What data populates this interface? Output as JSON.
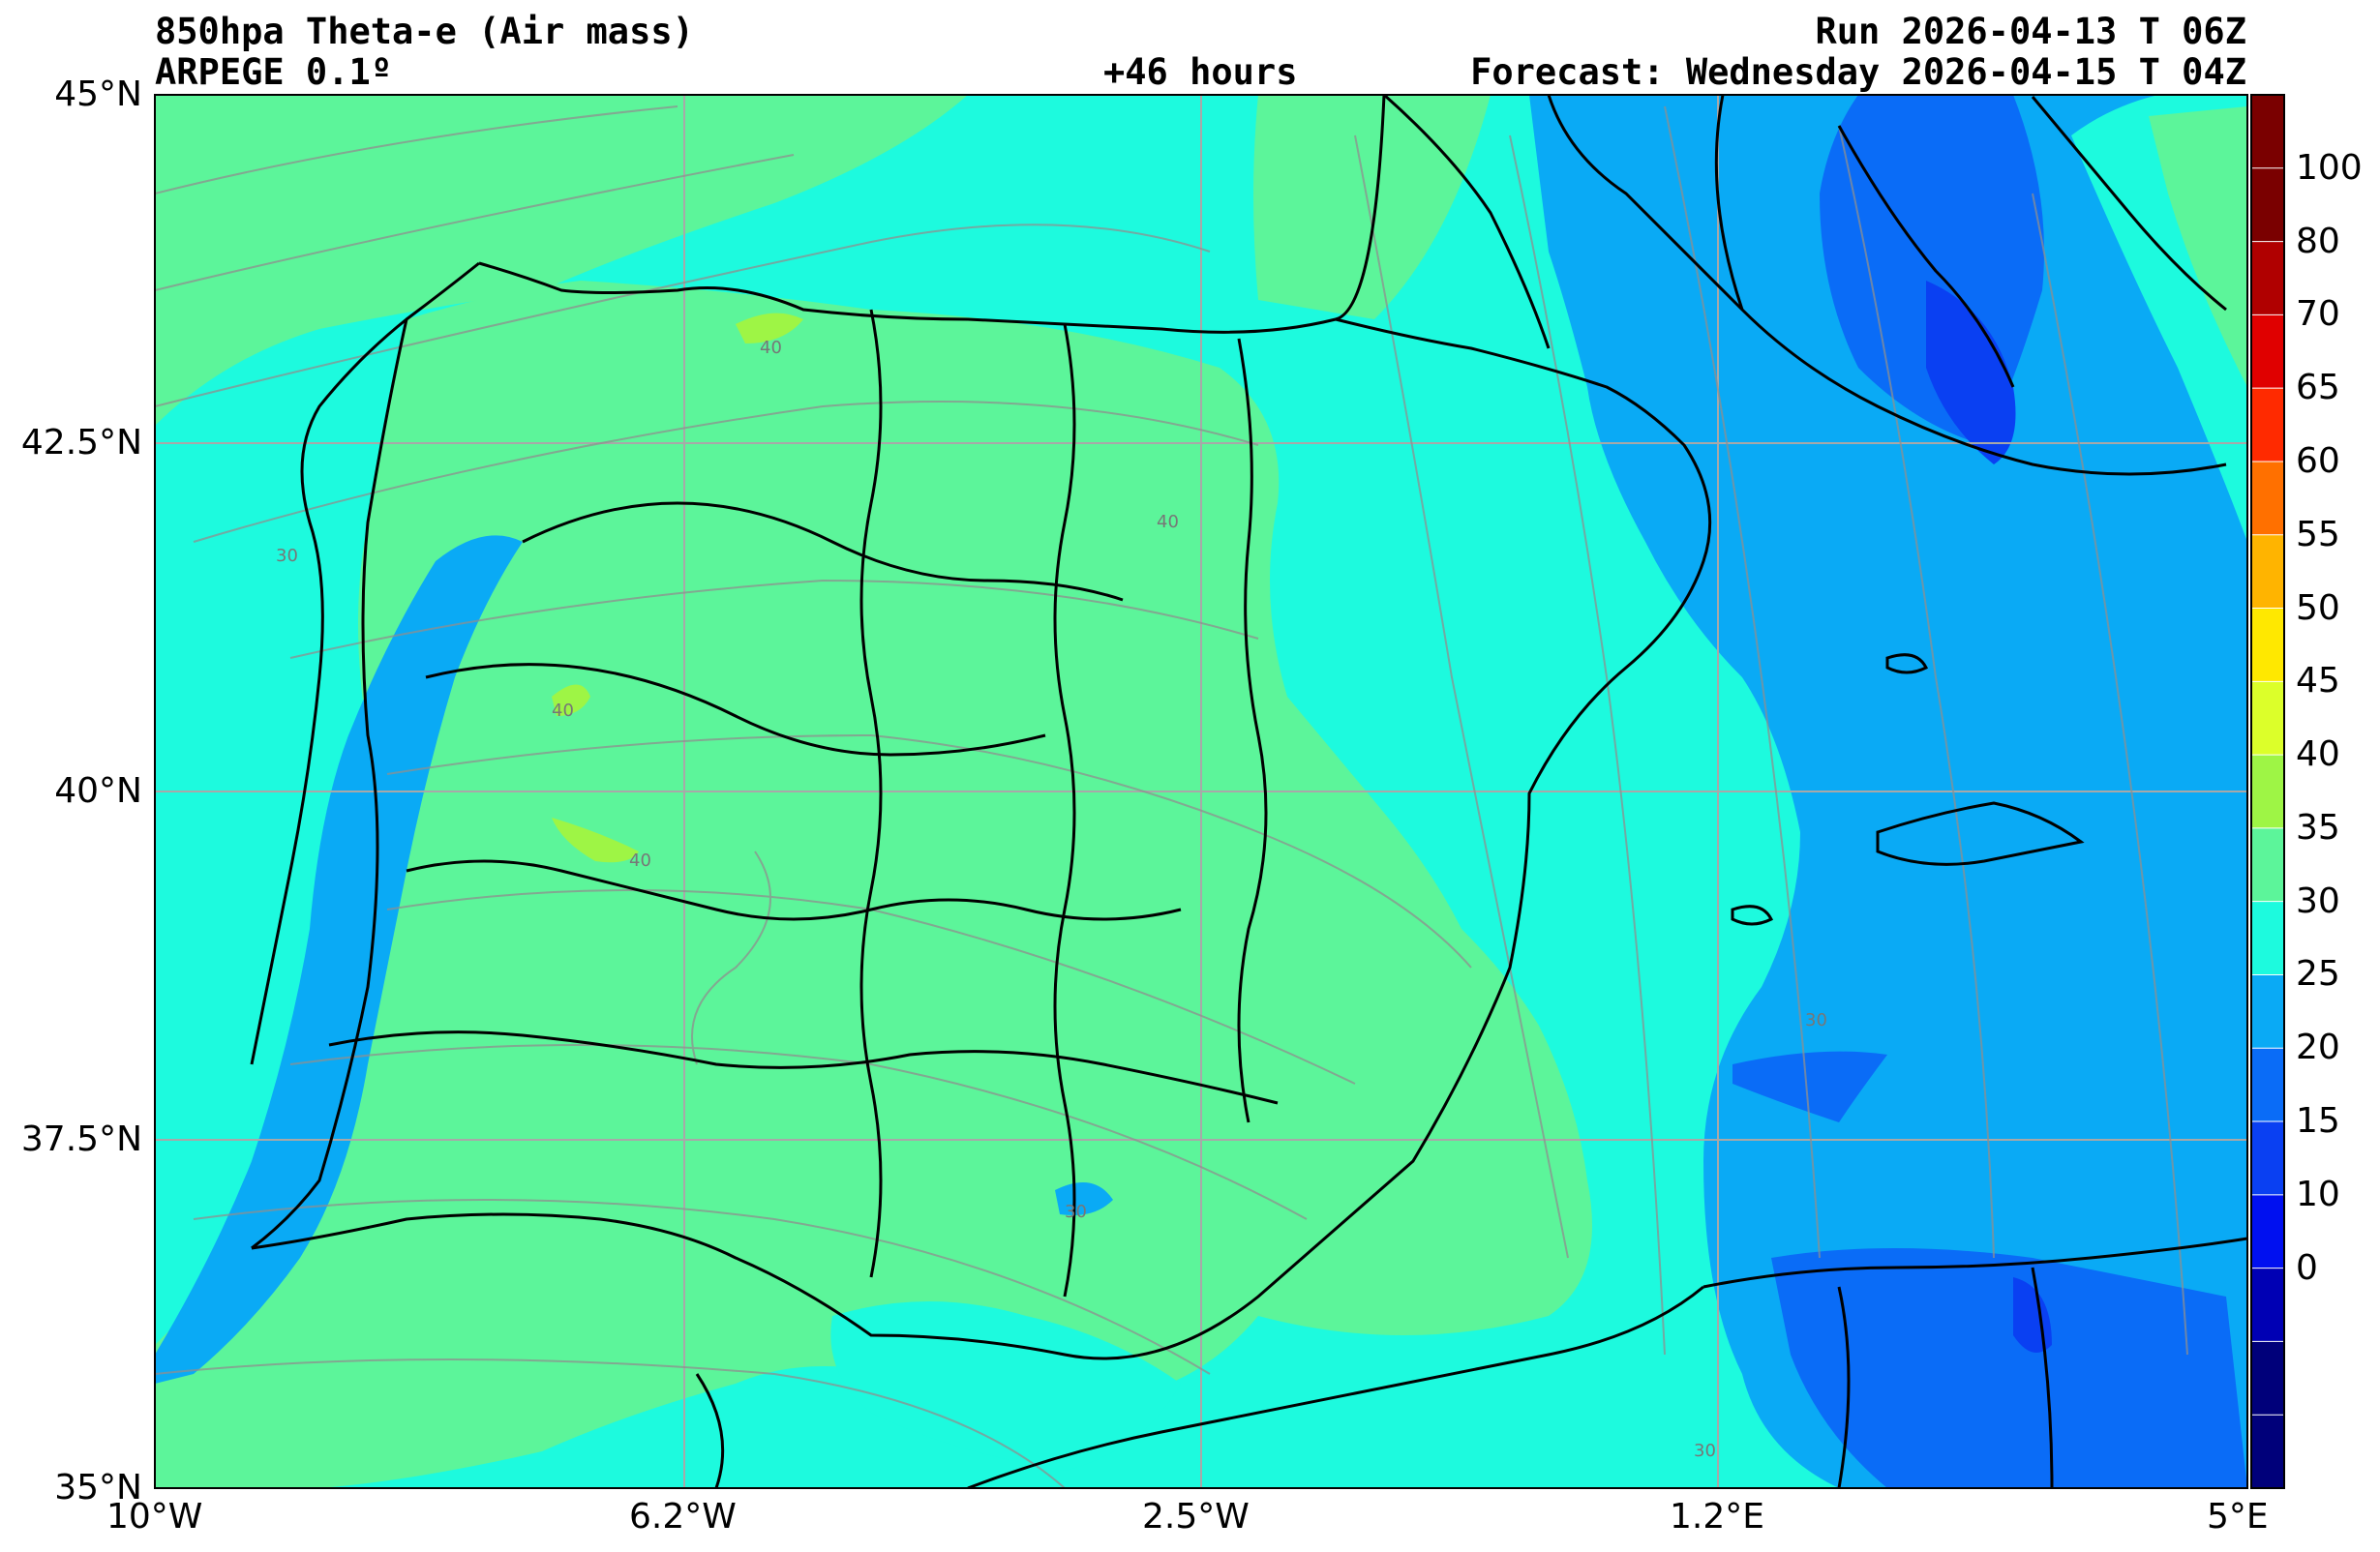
{
  "header": {
    "title": "850hpa Theta-e (Air mass)",
    "model": "ARPEGE 0.1º",
    "lead_time": "+46 hours",
    "run": "Run 2026-04-13 T 06Z",
    "forecast": "Forecast: Wednesday 2026-04-15 T 04Z"
  },
  "map": {
    "lat_labels": [
      "45°N",
      "42.5°N",
      "40°N",
      "37.5°N",
      "35°N"
    ],
    "lon_labels": [
      "10°W",
      "6.2°W",
      "2.5°W",
      "1.2°E",
      "5°E"
    ],
    "contour_labels": [
      "40",
      "40",
      "40",
      "40",
      "30",
      "30",
      "30",
      "30"
    ],
    "colors": {
      "land_green": "#5cf59a",
      "cyan": "#1dfade",
      "light_blue": "#0aaaf5",
      "blue": "#0a6cf7",
      "deep_blue": "#0a40f2"
    }
  },
  "colorbar": {
    "ticks": [
      "100",
      "80",
      "70",
      "65",
      "60",
      "55",
      "50",
      "45",
      "40",
      "35",
      "30",
      "25",
      "20",
      "15",
      "10",
      "0"
    ],
    "colors": [
      "#7a0000",
      "#7a0000",
      "#b00000",
      "#e00000",
      "#ff2a00",
      "#ff7000",
      "#ffb400",
      "#ffe800",
      "#dcff2a",
      "#9ef545",
      "#5cf59a",
      "#1dfade",
      "#0aaaf5",
      "#0a6cf7",
      "#0a40f2",
      "#0010f0",
      "#0000b4",
      "#00007a",
      "#00007a"
    ]
  }
}
